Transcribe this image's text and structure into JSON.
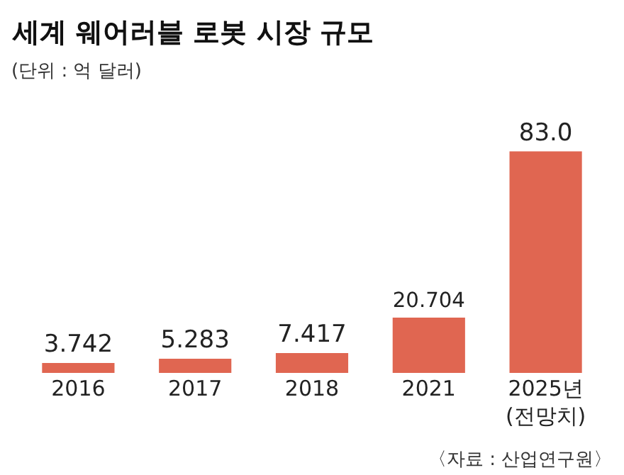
{
  "chart_data": {
    "type": "bar",
    "title": "세계 웨어러블 로봇 시장 규모",
    "subtitle": "(단위 : 억 달러)",
    "categories": [
      "2016",
      "2017",
      "2018",
      "2021",
      "2025년\n(전망치)"
    ],
    "values": [
      3.742,
      5.283,
      7.417,
      20.704,
      83.0
    ],
    "value_labels": [
      "3.742",
      "5.283",
      "7.417",
      "20.704",
      "83.0"
    ],
    "color": "#e06651",
    "annotations": [
      "〈자료 : 산업연구원〉"
    ],
    "grid": false,
    "legend": false
  }
}
